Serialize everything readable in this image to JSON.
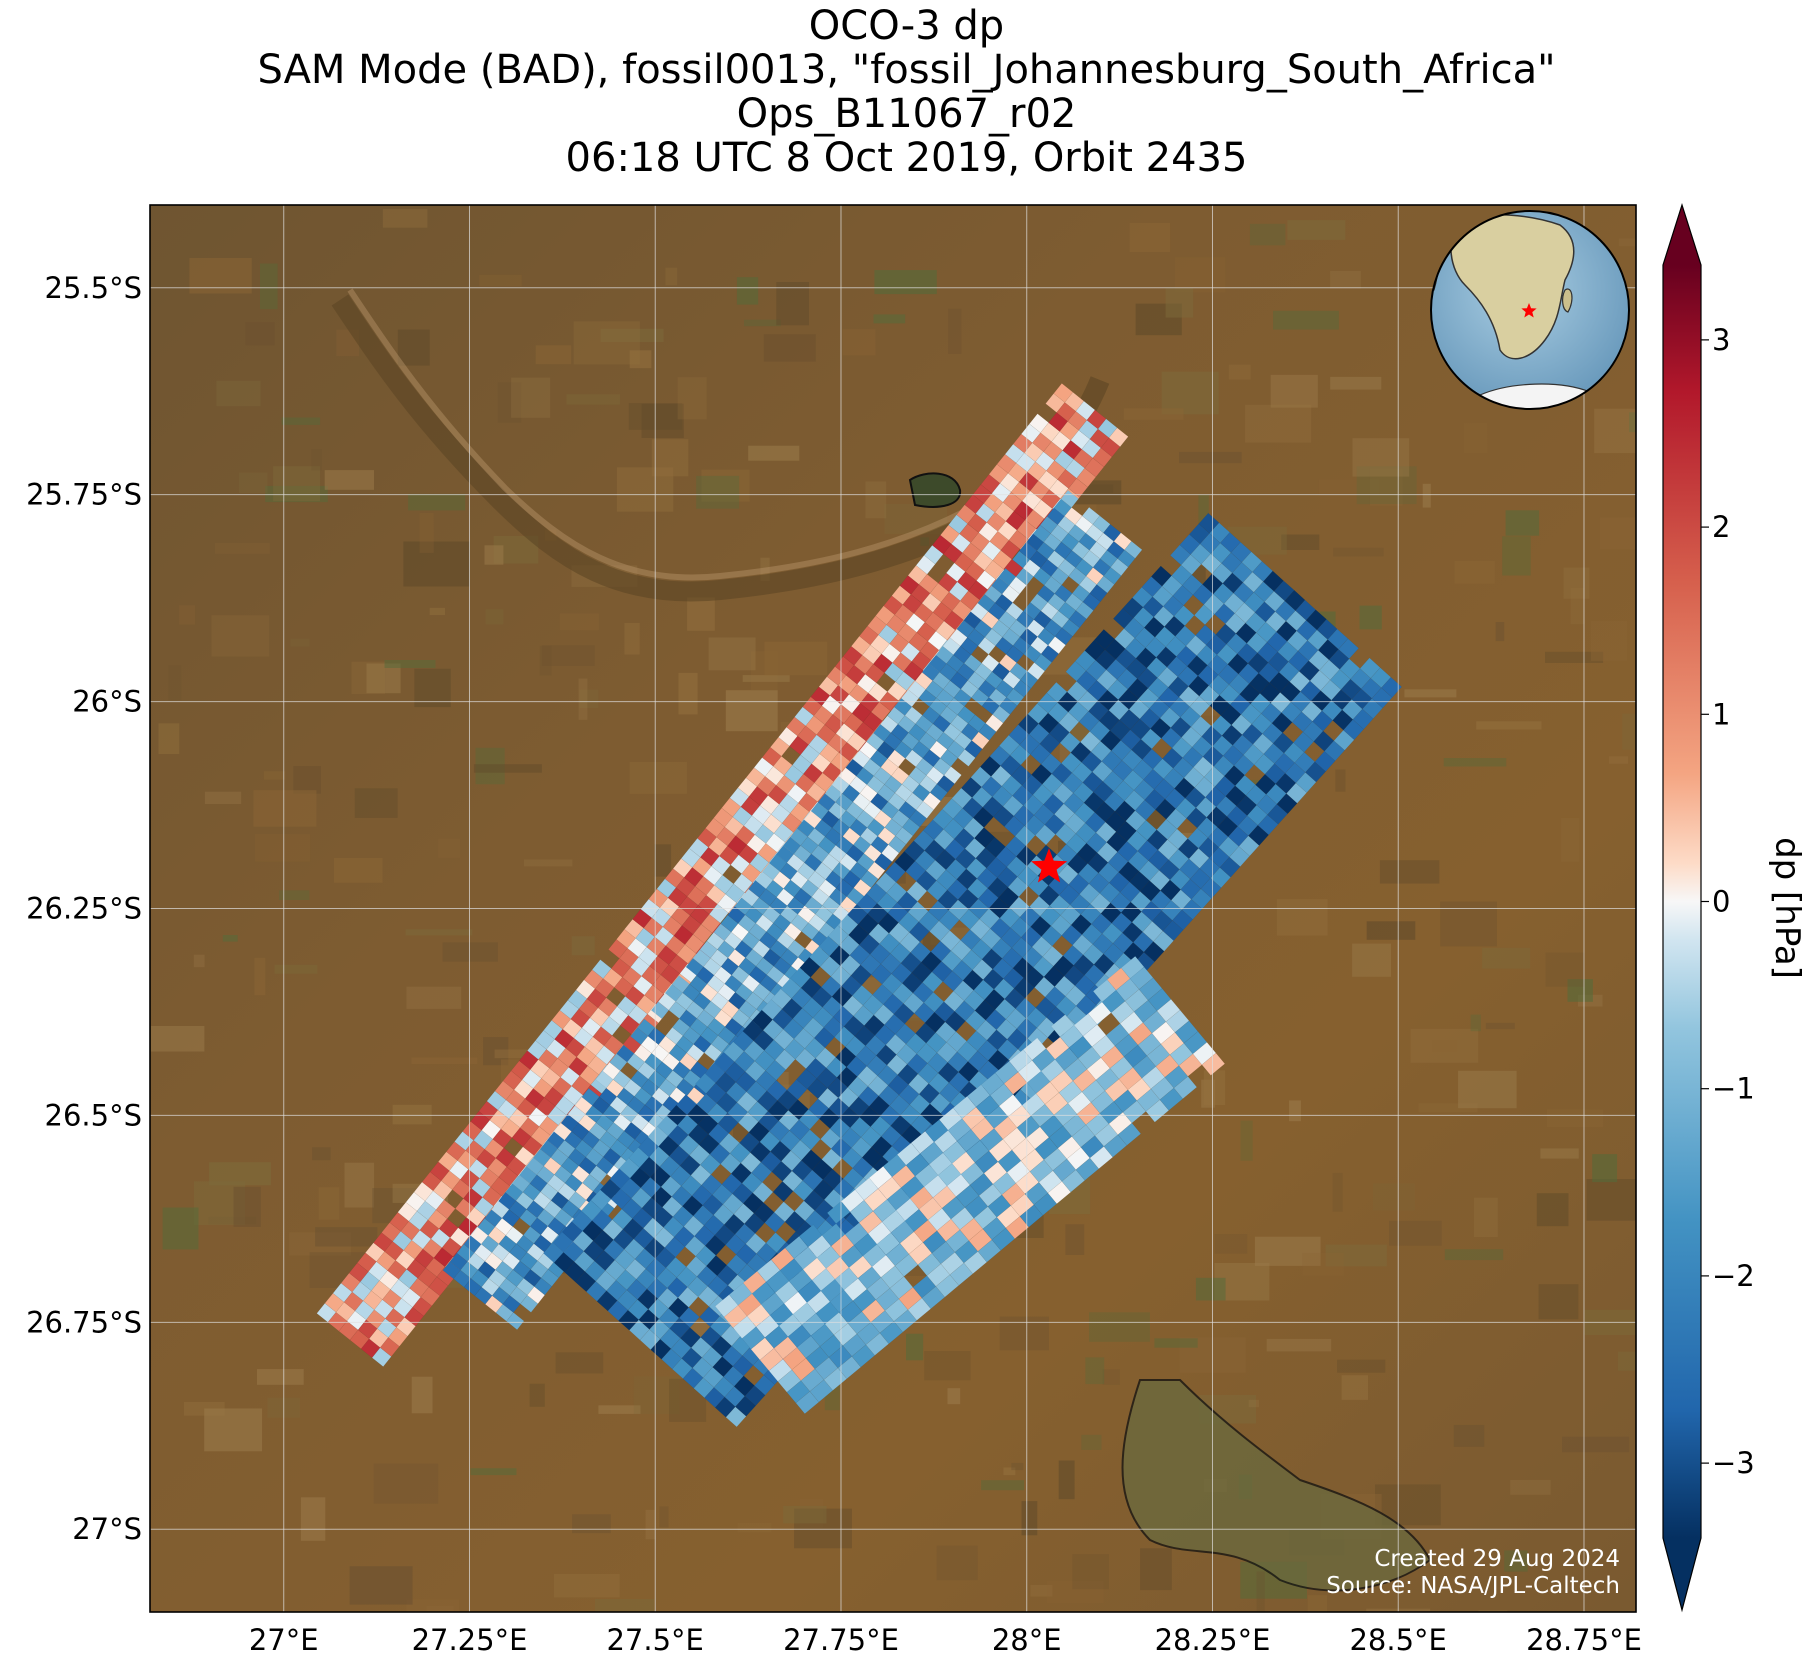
{
  "title": {
    "line1": "OCO-3 dp",
    "line2": "SAM Mode (BAD), fossil0013, \"fossil_Johannesburg_South_Africa\"",
    "line3": "Ops_B11067_r02",
    "line4": "06:18 UTC 8 Oct 2019, Orbit 2435"
  },
  "map": {
    "lon_range": [
      26.82,
      28.82
    ],
    "lat_range": [
      -27.1,
      -25.4
    ],
    "lon_ticks": [
      {
        "value": 27.0,
        "label": "27°E"
      },
      {
        "value": 27.25,
        "label": "27.25°E"
      },
      {
        "value": 27.5,
        "label": "27.5°E"
      },
      {
        "value": 27.75,
        "label": "27.75°E"
      },
      {
        "value": 28.0,
        "label": "28°E"
      },
      {
        "value": 28.25,
        "label": "28.25°E"
      },
      {
        "value": 28.5,
        "label": "28.5°E"
      },
      {
        "value": 28.75,
        "label": "28.75°E"
      }
    ],
    "lat_ticks": [
      {
        "value": -25.5,
        "label": "25.5°S"
      },
      {
        "value": -25.75,
        "label": "25.75°S"
      },
      {
        "value": -26.0,
        "label": "26°S"
      },
      {
        "value": -26.25,
        "label": "26.25°S"
      },
      {
        "value": -26.5,
        "label": "26.5°S"
      },
      {
        "value": -26.75,
        "label": "26.75°S"
      },
      {
        "value": -27.0,
        "label": "27°S"
      }
    ],
    "gridlines": true,
    "target_marker": {
      "lon": 28.03,
      "lat": -26.2,
      "color": "#ff0000",
      "icon": "star-icon"
    },
    "background": "satellite imagery",
    "inset_globe": {
      "position": "top-right",
      "icon": "globe-icon",
      "marker_color": "#ff0000"
    }
  },
  "colorbar": {
    "label": "dp [hPa]",
    "range": [
      -3.4,
      3.4
    ],
    "extend": "both",
    "cmap": "RdBu_r",
    "ticks": [
      {
        "value": 3,
        "label": "3"
      },
      {
        "value": 2,
        "label": "2"
      },
      {
        "value": 1,
        "label": "1"
      },
      {
        "value": 0,
        "label": "0"
      },
      {
        "value": -1,
        "label": "−1"
      },
      {
        "value": -2,
        "label": "−2"
      },
      {
        "value": -3,
        "label": "−3"
      }
    ]
  },
  "credits": {
    "created": "Created 29 Aug 2024",
    "source": "Source: NASA/JPL-Caltech"
  },
  "colors": {
    "land": "#7a5a30",
    "grid": "#d9d9d9",
    "dark_blue": "#053061",
    "dark_red": "#67001f",
    "marker": "#ff0000"
  }
}
